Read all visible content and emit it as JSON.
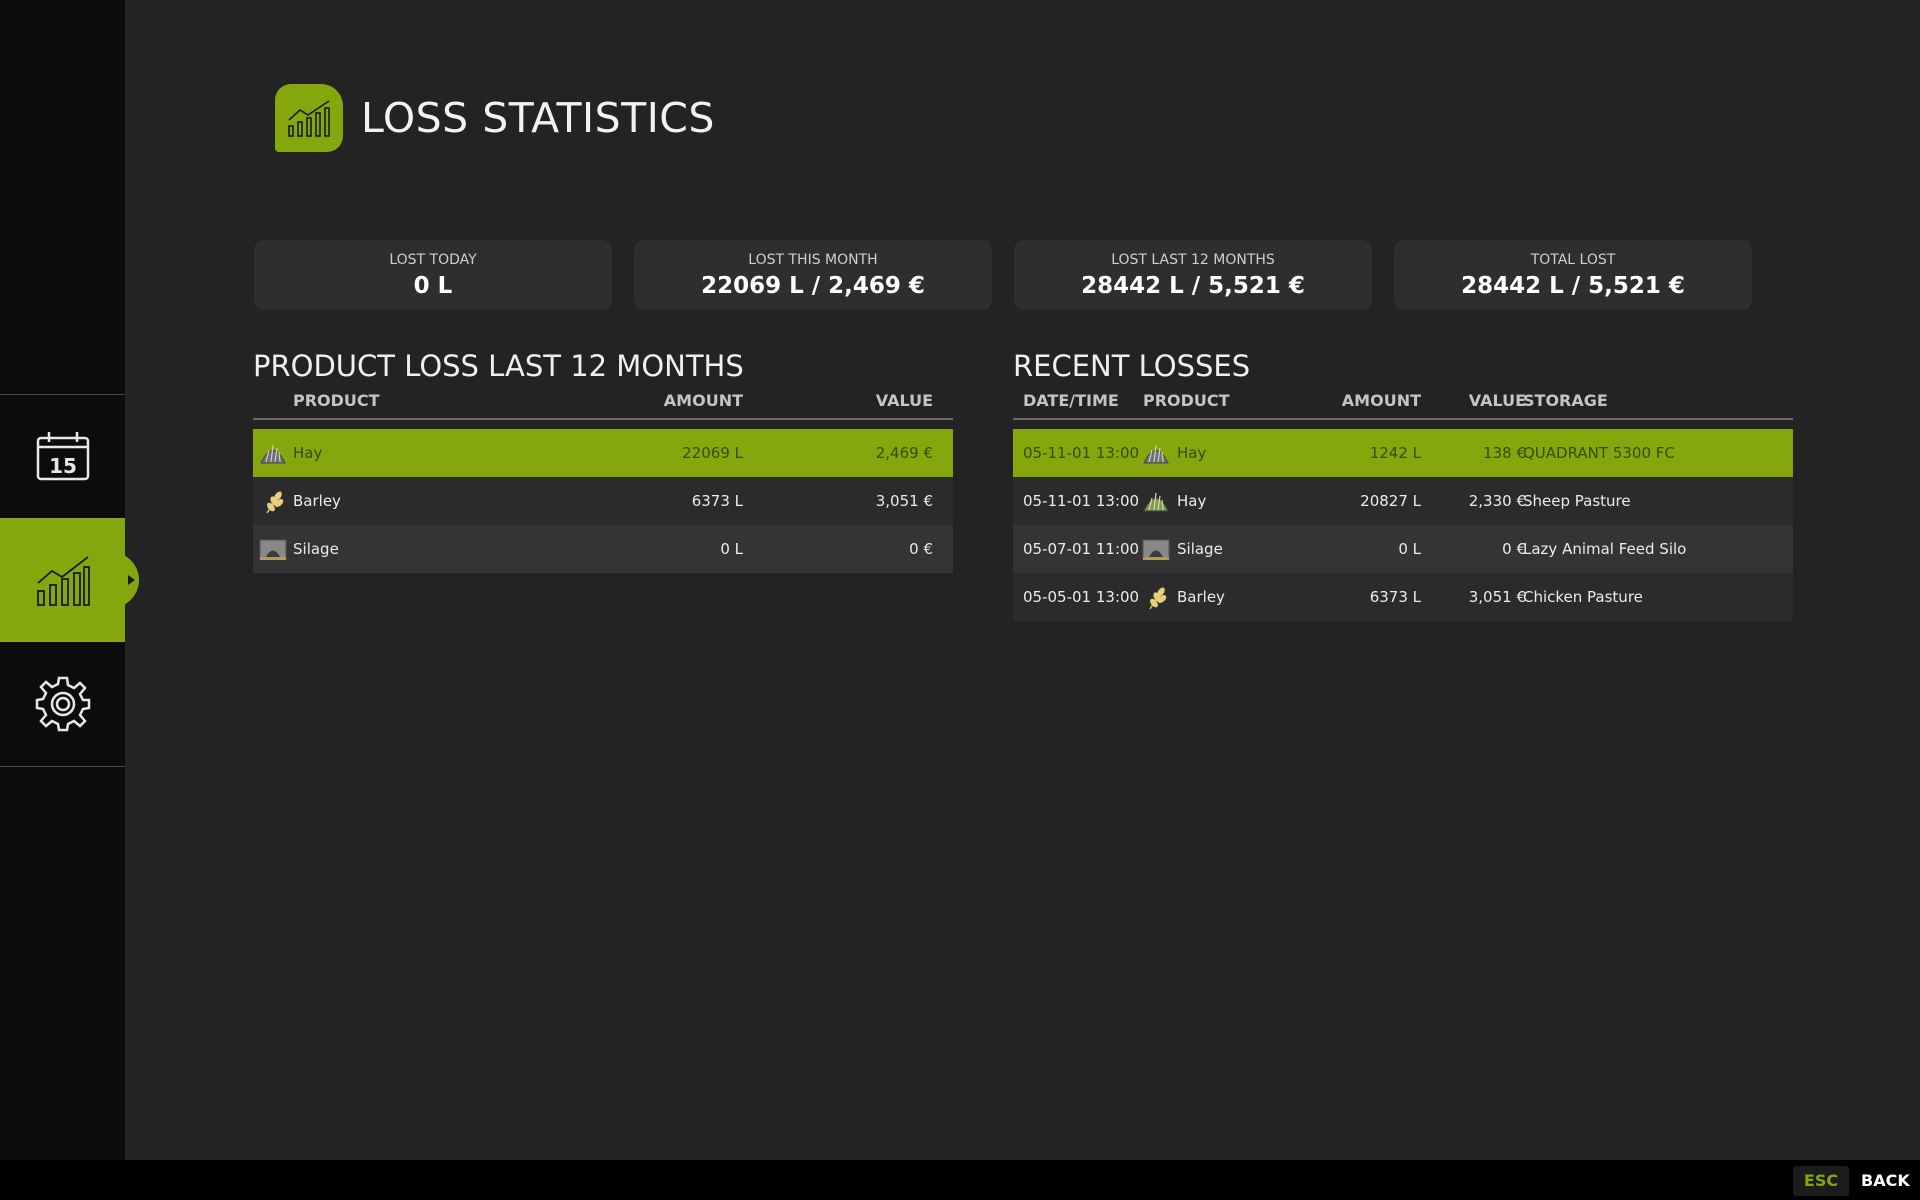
{
  "header": {
    "title": "LOSS STATISTICS",
    "icon": "bar-chart-icon"
  },
  "sidebar": {
    "items": [
      {
        "name": "calendar",
        "icon": "calendar-icon",
        "text": "15",
        "active": false
      },
      {
        "name": "statistics",
        "icon": "bar-chart-icon",
        "active": true
      },
      {
        "name": "settings",
        "icon": "gear-icon",
        "active": false
      }
    ]
  },
  "stats": [
    {
      "label": "LOST TODAY",
      "value": "0 L"
    },
    {
      "label": "LOST THIS MONTH",
      "value": "22069 L / 2,469 €"
    },
    {
      "label": "LOST LAST 12 MONTHS",
      "value": "28442 L / 5,521 €"
    },
    {
      "label": "TOTAL LOST",
      "value": "28442 L / 5,521 €"
    }
  ],
  "product_loss": {
    "title": "PRODUCT LOSS LAST 12 MONTHS",
    "columns": {
      "product": "PRODUCT",
      "amount": "AMOUNT",
      "value": "VALUE"
    },
    "rows": [
      {
        "icon": "hay-icon",
        "product": "Hay",
        "amount": "22069 L",
        "value": "2,469 €"
      },
      {
        "icon": "barley-icon",
        "product": "Barley",
        "amount": "6373 L",
        "value": "3,051 €"
      },
      {
        "icon": "silage-icon",
        "product": "Silage",
        "amount": "0 L",
        "value": "0 €"
      }
    ]
  },
  "recent_losses": {
    "title": "RECENT LOSSES",
    "columns": {
      "datetime": "DATE/TIME",
      "product": "PRODUCT",
      "amount": "AMOUNT",
      "value": "VALUE",
      "storage": "STORAGE"
    },
    "rows": [
      {
        "datetime": "05-11-01 13:00",
        "icon": "hay-icon",
        "product": "Hay",
        "amount": "1242 L",
        "value": "138 €",
        "storage": "QUADRANT 5300 FC"
      },
      {
        "datetime": "05-11-01 13:00",
        "icon": "hay-icon",
        "product": "Hay",
        "amount": "20827 L",
        "value": "2,330 €",
        "storage": "Sheep Pasture"
      },
      {
        "datetime": "05-07-01 11:00",
        "icon": "silage-icon",
        "product": "Silage",
        "amount": "0 L",
        "value": "0 €",
        "storage": "Lazy Animal Feed Silo"
      },
      {
        "datetime": "05-05-01 13:00",
        "icon": "barley-icon",
        "product": "Barley",
        "amount": "6373 L",
        "value": "3,051 €",
        "storage": "Chicken Pasture"
      }
    ]
  },
  "footer": {
    "key": "ESC",
    "label": "BACK"
  },
  "colors": {
    "accent": "#84a70d",
    "background": "#232323",
    "sidebar": "#0c0c0c"
  }
}
